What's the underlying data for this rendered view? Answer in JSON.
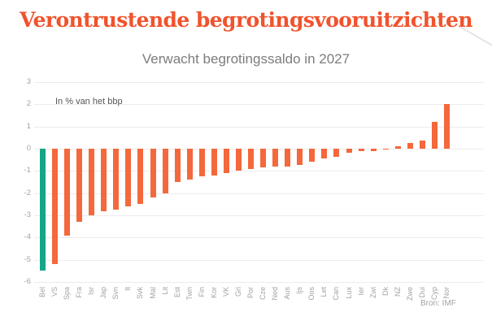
{
  "header": {
    "title": "Verontrustende begrotingsvooruitzichten",
    "subtitle": "Verwacht begrotingssaldo in 2027"
  },
  "chart_data": {
    "type": "bar",
    "title": "Verwacht begrotingssaldo in 2027",
    "annotation": "In % van het bbp",
    "source": "Bron: IMF",
    "xlabel": "",
    "ylabel": "In % van het bbp",
    "ylim": [
      -6,
      3
    ],
    "yticks": [
      3,
      2,
      1,
      0,
      -1,
      -2,
      -3,
      -4,
      -5,
      -6
    ],
    "grid": true,
    "legend": "none",
    "categories": [
      "Bel",
      "VS",
      "Spa",
      "Fra",
      "Isr",
      "Jap",
      "Svn",
      "It",
      "Svk",
      "Mal",
      "Lit",
      "Est",
      "Twn",
      "Fin",
      "Kor",
      "VK",
      "Gri",
      "Por",
      "Cze",
      "Ned",
      "Aus",
      "Ijs",
      "Oos",
      "Let",
      "Can",
      "Lux",
      "Ier",
      "Zwi",
      "Dk",
      "NZ",
      "Zwe",
      "Dui",
      "Cyp",
      "Nor"
    ],
    "values": [
      -5.5,
      -5.2,
      -3.9,
      -3.3,
      -3.0,
      -2.8,
      -2.75,
      -2.6,
      -2.5,
      -2.2,
      -2.0,
      -1.5,
      -1.4,
      -1.25,
      -1.2,
      -1.1,
      -1.0,
      -0.9,
      -0.85,
      -0.8,
      -0.8,
      -0.75,
      -0.6,
      -0.45,
      -0.35,
      -0.2,
      -0.1,
      -0.1,
      -0.05,
      0.1,
      0.25,
      0.35,
      1.2,
      2.0
    ],
    "highlight_category": "Bel",
    "colors": {
      "bar": "#f4683c",
      "highlight": "#14a689",
      "title": "#f0532d",
      "subtitle": "#7c7c7c",
      "axis_text": "#a5a3a2",
      "gridline": "#ececec"
    }
  }
}
